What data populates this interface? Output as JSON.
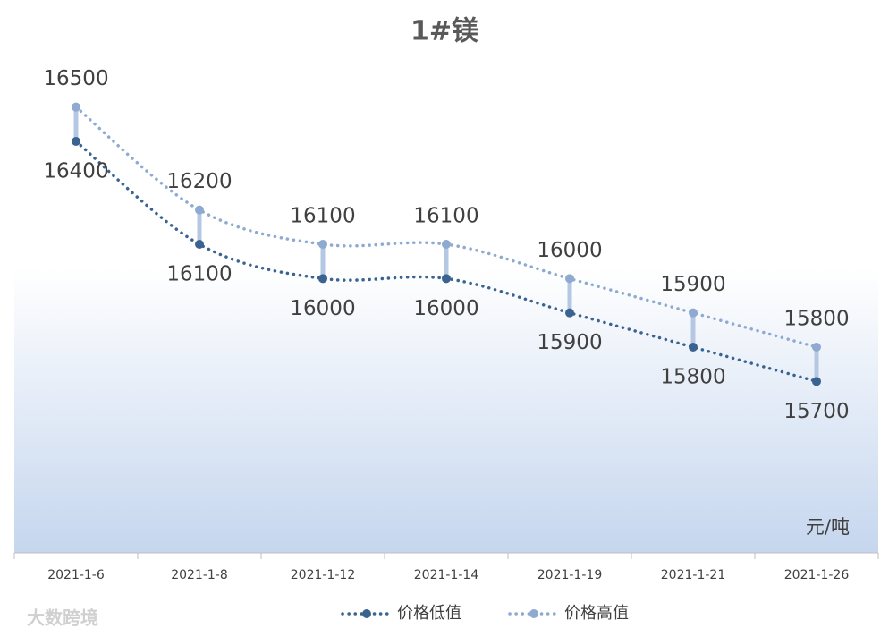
{
  "chart_data": {
    "type": "line",
    "title": "1#镁",
    "categories": [
      "2021-1-6",
      "2021-1-8",
      "2021-1-12",
      "2021-1-14",
      "2021-1-19",
      "2021-1-21",
      "2021-1-26"
    ],
    "series": [
      {
        "name": "价格低值",
        "color": "#3b6391",
        "values": [
          16400,
          16100,
          16000,
          16000,
          15900,
          15800,
          15700
        ]
      },
      {
        "name": "价格高值",
        "color": "#8faad0",
        "values": [
          16500,
          16200,
          16100,
          16100,
          16000,
          15900,
          15800
        ]
      }
    ],
    "ylim": [
      15200,
      16700
    ],
    "unit_label": "元/吨",
    "watermark": "大数跨境"
  }
}
